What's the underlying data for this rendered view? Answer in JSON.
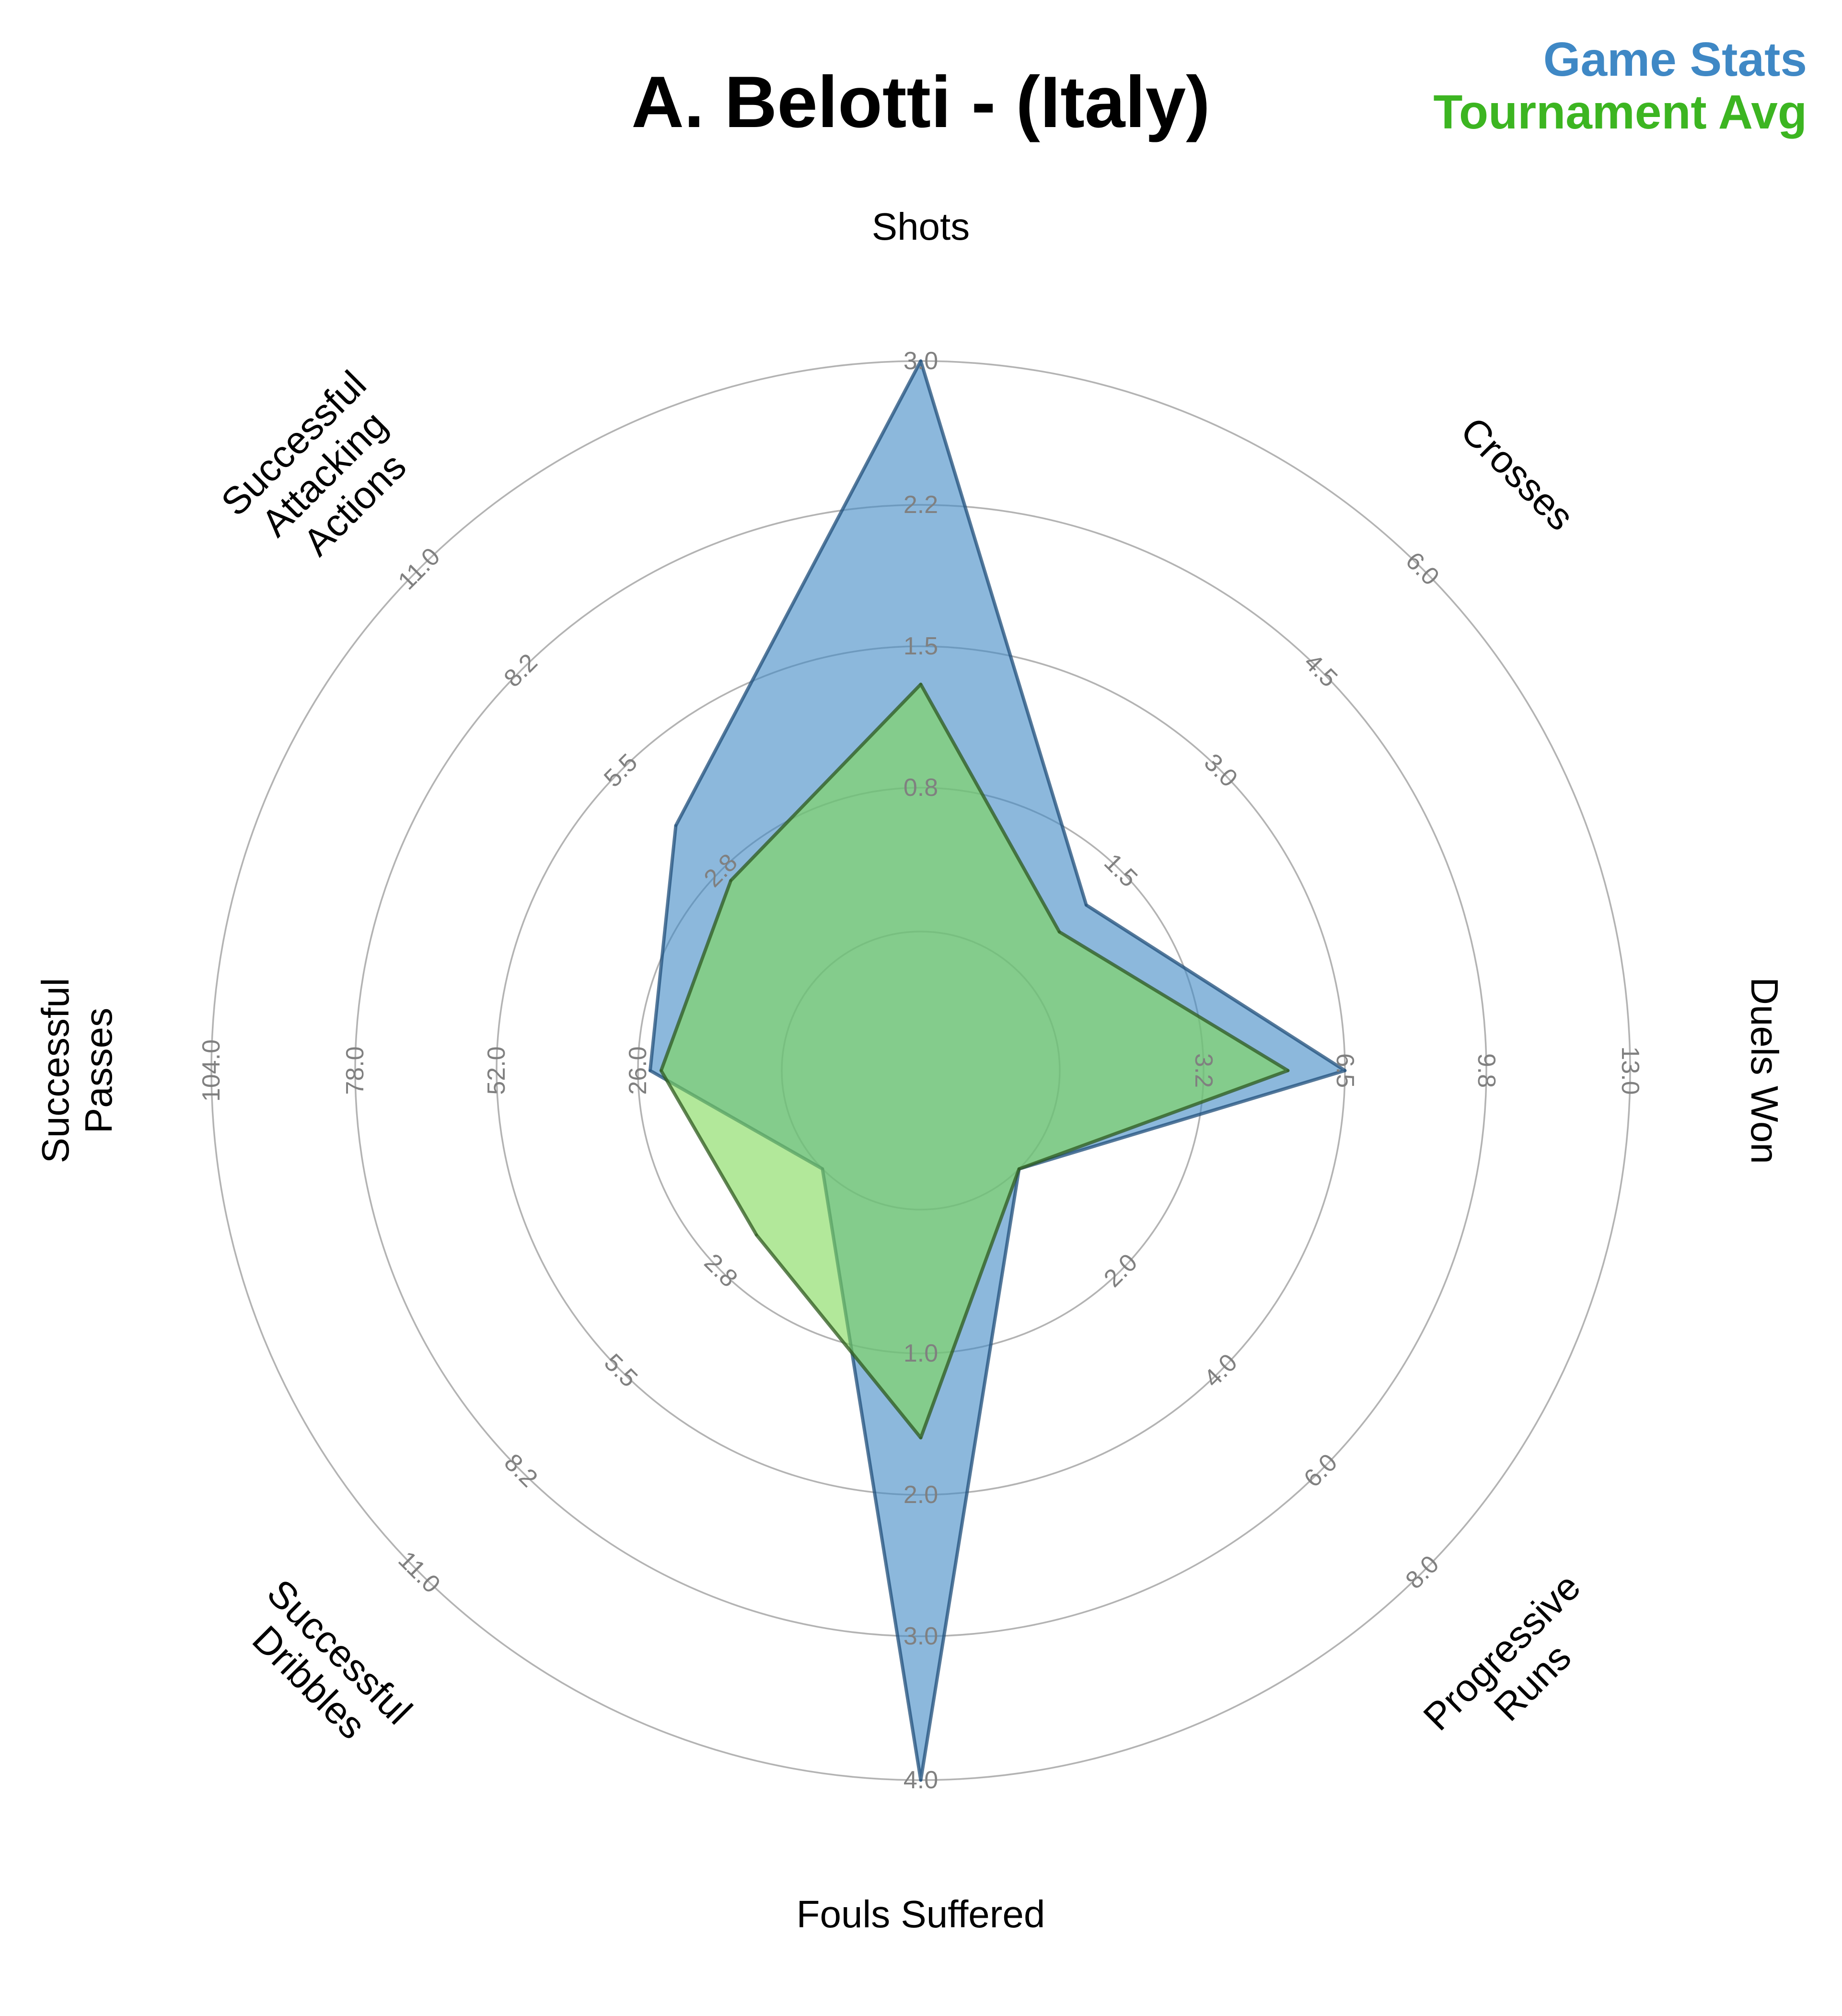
{
  "chart_data": {
    "type": "radar",
    "title": "A. Belotti - (Italy)",
    "legend_position": "top-right",
    "series": [
      {
        "name": "Game Stats",
        "color": "#3f88c5",
        "values": [
          3,
          1,
          6.5,
          0,
          4,
          0,
          24,
          4
        ]
      },
      {
        "name": "Tournament Avg",
        "color": "#3cb521",
        "values": [
          1.3,
          0.6,
          5.2,
          0,
          1.6,
          1.8,
          22,
          2.5
        ]
      }
    ],
    "axes": [
      {
        "label": [
          "Shots"
        ],
        "ticks": [
          "0.8",
          "1.5",
          "2.2",
          "3.0"
        ],
        "max": 3.0
      },
      {
        "label": [
          "Crosses"
        ],
        "ticks": [
          "1.5",
          "3.0",
          "4.5",
          "6.0"
        ],
        "max": 6.0
      },
      {
        "label": [
          "Duels Won"
        ],
        "ticks": [
          "3.2",
          "6.5",
          "9.8",
          "13.0"
        ],
        "max": 13.0
      },
      {
        "label": [
          "Progressive",
          "Runs"
        ],
        "ticks": [
          "2.0",
          "4.0",
          "6.0",
          "8.0"
        ],
        "max": 8.0
      },
      {
        "label": [
          "Fouls Suffered"
        ],
        "ticks": [
          "1.0",
          "2.0",
          "3.0",
          "4.0"
        ],
        "max": 4.0
      },
      {
        "label": [
          "Successful",
          "Dribbles"
        ],
        "ticks": [
          "2.8",
          "5.5",
          "8.2",
          "11.0"
        ],
        "max": 11.0
      },
      {
        "label": [
          "Successful",
          "Passes"
        ],
        "ticks": [
          "26.0",
          "52.0",
          "78.0",
          "104.0"
        ],
        "max": 104.0
      },
      {
        "label": [
          "Successful",
          "Attacking",
          "Actions"
        ],
        "ticks": [
          "2.8",
          "5.5",
          "8.2",
          "11.0"
        ],
        "max": 11.0
      }
    ]
  }
}
